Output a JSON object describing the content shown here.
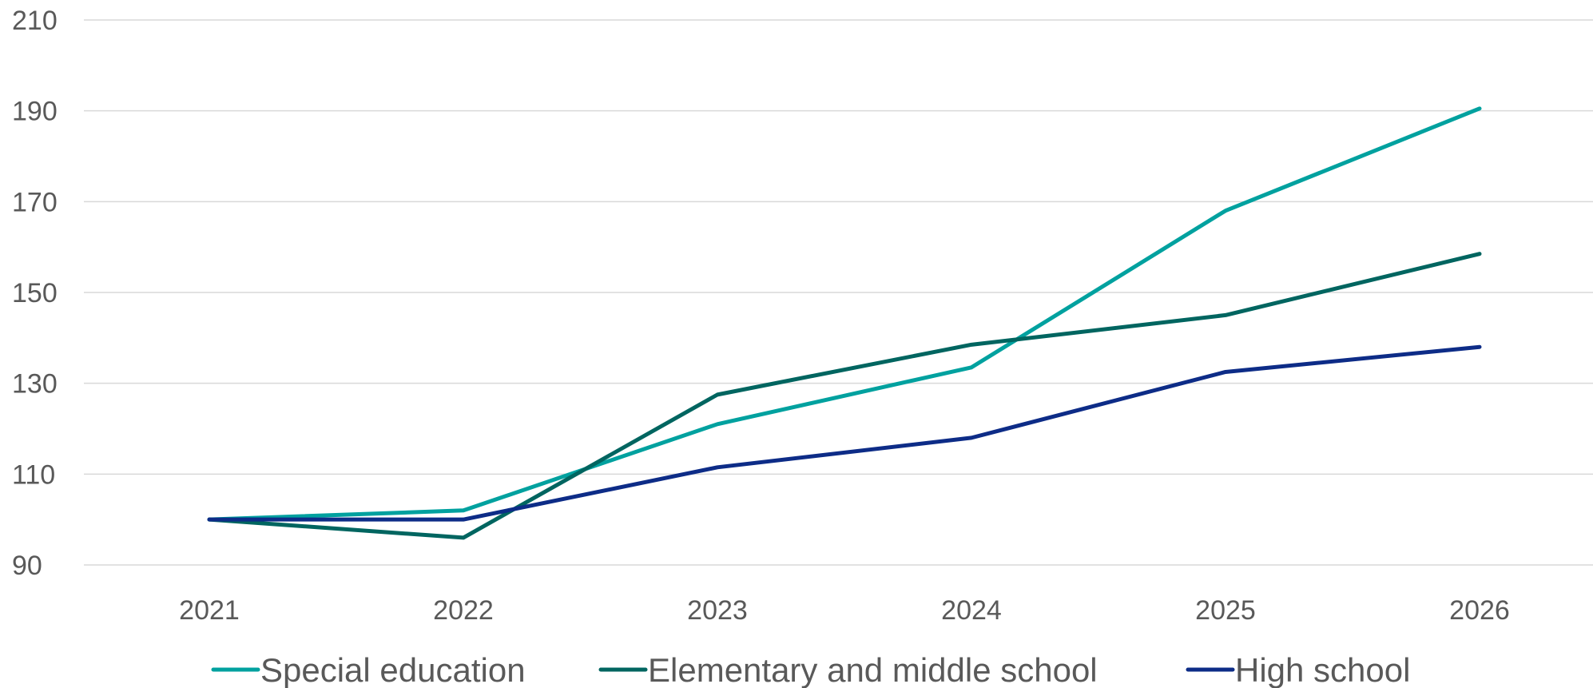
{
  "chart_data": {
    "type": "line",
    "title": "",
    "xlabel": "",
    "ylabel": "",
    "x": [
      "2021",
      "2022",
      "2023",
      "2024",
      "2025",
      "2026"
    ],
    "ylim": [
      90,
      210
    ],
    "yticks": [
      90,
      110,
      130,
      150,
      170,
      190,
      210
    ],
    "grid": true,
    "legend_position": "bottom",
    "series": [
      {
        "name": "Special education",
        "color": "#00a19f",
        "values": [
          100,
          102,
          121,
          133.5,
          168,
          190.5
        ]
      },
      {
        "name": "Elementary and middle school",
        "color": "#006560",
        "values": [
          100,
          96,
          127.5,
          138.5,
          145,
          158.5
        ]
      },
      {
        "name": "High school",
        "color": "#0d2c87",
        "values": [
          100,
          100,
          111.5,
          118,
          132.5,
          138
        ]
      }
    ]
  }
}
